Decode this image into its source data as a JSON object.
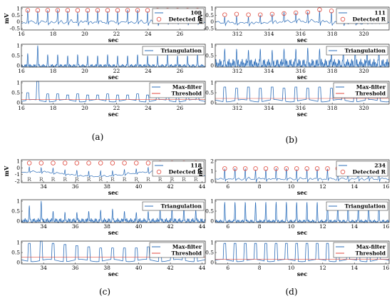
{
  "figure": {
    "panels": [
      {
        "caption": "(a)",
        "ecg_legend": "109",
        "detected_legend": "Detected R",
        "tri_legend": "Triangulation",
        "max_legend": "Max-filter",
        "thr_legend": "Threshold",
        "ecg_ylabel": "mV",
        "xlabel": "sec",
        "ecg_yticks": [
          "1",
          "0.5",
          "0",
          "-0.5"
        ],
        "tri_yticks": [
          "1",
          "0.5",
          "0"
        ],
        "max_yticks": [
          "1",
          "0.5",
          "0"
        ],
        "xticks": [
          "16",
          "18",
          "20",
          "22",
          "24",
          "26"
        ],
        "r_marker_label": ""
      },
      {
        "caption": "(b)",
        "ecg_legend": "111",
        "detected_legend": "Detected R",
        "tri_legend": "Triangulation",
        "max_legend": "Max-filter",
        "thr_legend": "Threshold",
        "ecg_ylabel": "mV",
        "xlabel": "sec",
        "ecg_yticks": [
          "1",
          "0.5",
          "0",
          "-0.5"
        ],
        "tri_yticks": [
          "1",
          "0.5",
          "0"
        ],
        "max_yticks": [
          "1",
          "0.5",
          "0"
        ],
        "xticks": [
          "312",
          "314",
          "316",
          "318",
          "320"
        ],
        "r_marker_label": ""
      },
      {
        "caption": "(c)",
        "ecg_legend": "118",
        "detected_legend": "Detected R",
        "tri_legend": "Triangulation",
        "max_legend": "Max-filter",
        "thr_legend": "Threshold",
        "ecg_ylabel": "mV",
        "xlabel": "sec",
        "ecg_yticks": [
          "1",
          "0",
          "-1",
          "-2"
        ],
        "tri_yticks": [
          "1",
          "0.5",
          "0"
        ],
        "max_yticks": [
          "1",
          "0.5",
          "0"
        ],
        "xticks": [
          "34",
          "36",
          "38",
          "40",
          "42",
          "44"
        ],
        "r_marker_label": "R"
      },
      {
        "caption": "(d)",
        "ecg_legend": "234",
        "detected_legend": "Detected R",
        "tri_legend": "Triangulation",
        "max_legend": "Max-filter",
        "thr_legend": "Threshold",
        "ecg_ylabel": "mV",
        "xlabel": "sec",
        "ecg_yticks": [
          "2",
          "1",
          "0"
        ],
        "tri_yticks": [
          "1",
          "0.5",
          "0"
        ],
        "max_yticks": [
          "1",
          "0.5",
          "0"
        ],
        "xticks": [
          "6",
          "8",
          "10",
          "12",
          "14",
          "16"
        ],
        "r_marker_label": ""
      }
    ]
  },
  "chart_data": [
    {
      "panel": "(a)",
      "type": "line",
      "record": "109",
      "signals": [
        "ECG",
        "Triangulation",
        "Max-filter",
        "Threshold"
      ],
      "x_range": [
        16,
        27.6
      ],
      "ecg_ylim": [
        -0.6,
        1.2
      ],
      "tri_ylim": [
        0,
        1
      ],
      "max_ylim": [
        0,
        1
      ],
      "r_peak_times": [
        16.4,
        17.03,
        17.66,
        18.29,
        18.92,
        19.55,
        20.18,
        20.81,
        21.44,
        22.07,
        22.7,
        23.33,
        23.96,
        24.59,
        25.22,
        25.85,
        26.48,
        27.11
      ],
      "r_peak_amplitudes": [
        0.95,
        0.95,
        0.95,
        0.95,
        0.95,
        0.95,
        0.95,
        0.95,
        0.95,
        0.95,
        0.95,
        0.95,
        0.95,
        0.95,
        0.95,
        0.95,
        0.95,
        0.95
      ],
      "tri_peak_values": [
        0.6,
        0.95,
        0.55,
        0.55,
        0.5,
        0.55,
        0.5,
        0.5,
        0.55,
        0.5,
        0.5,
        0.55,
        0.5,
        0.5,
        0.55,
        0.5,
        0.5,
        0.55
      ],
      "max_filter_peaks": [
        0.5,
        1.0,
        0.45,
        0.45,
        0.4,
        0.45,
        0.4,
        0.4,
        0.45,
        0.4,
        0.4,
        0.45,
        0.4,
        0.4,
        0.45,
        0.4,
        0.4,
        0.45
      ],
      "threshold": 0.2
    },
    {
      "panel": "(b)",
      "type": "line",
      "record": "111",
      "signals": [
        "ECG",
        "Triangulation",
        "Max-filter",
        "Threshold"
      ],
      "x_range": [
        310.6,
        321.6
      ],
      "ecg_ylim": [
        -0.6,
        1.2
      ],
      "tri_ylim": [
        0,
        1
      ],
      "max_ylim": [
        0,
        1
      ],
      "r_peak_times": [
        311.2,
        311.95,
        312.7,
        313.45,
        314.2,
        314.95,
        315.7,
        316.45,
        317.2,
        317.95,
        318.7,
        319.45,
        320.2,
        320.95
      ],
      "r_peak_amplitudes": [
        0.6,
        0.65,
        0.6,
        0.6,
        0.65,
        0.7,
        0.75,
        0.8,
        1.0,
        0.9,
        0.8,
        0.75,
        0.7,
        0.7
      ],
      "tri_peak_values": [
        0.8,
        0.8,
        0.75,
        0.8,
        0.75,
        0.8,
        0.8,
        0.85,
        0.8,
        0.75,
        0.8,
        0.8,
        0.75,
        0.8
      ],
      "max_filter_peaks": [
        0.75,
        0.7,
        0.75,
        0.7,
        0.75,
        0.7,
        0.75,
        0.7,
        0.75,
        0.7,
        0.75,
        0.7,
        0.75,
        0.7
      ],
      "threshold": 0.25
    },
    {
      "panel": "(c)",
      "type": "line",
      "record": "118",
      "signals": [
        "ECG",
        "Triangulation",
        "Max-filter",
        "Threshold"
      ],
      "x_range": [
        32.6,
        44.2
      ],
      "ecg_ylim": [
        -2.2,
        1.3
      ],
      "tri_ylim": [
        0,
        1
      ],
      "max_ylim": [
        0,
        1
      ],
      "r_peak_times": [
        33.1,
        33.85,
        34.6,
        35.35,
        36.1,
        36.85,
        37.6,
        38.35,
        39.1,
        39.85,
        40.6,
        41.35,
        42.1,
        42.85,
        43.6
      ],
      "r_peak_amplitudes": [
        0.8,
        0.8,
        0.8,
        0.8,
        0.8,
        0.8,
        0.8,
        0.8,
        0.8,
        0.8,
        0.8,
        0.8,
        0.8,
        0.8,
        0.8
      ],
      "tri_peak_values": [
        0.75,
        0.95,
        0.5,
        0.45,
        0.45,
        0.5,
        0.55,
        0.6,
        0.5,
        0.45,
        0.5,
        0.55,
        0.6,
        0.75,
        0.55
      ],
      "max_filter_peaks": [
        0.9,
        1.0,
        0.9,
        0.85,
        0.8,
        0.75,
        0.7,
        0.7,
        0.7,
        0.7,
        0.75,
        0.7,
        0.7,
        0.75,
        0.7
      ],
      "threshold": 0.3
    },
    {
      "panel": "(d)",
      "type": "line",
      "record": "234",
      "signals": [
        "ECG",
        "Triangulation",
        "Max-filter",
        "Threshold"
      ],
      "x_range": [
        5.2,
        16.2
      ],
      "ecg_ylim": [
        -0.4,
        2.2
      ],
      "tri_ylim": [
        0,
        1
      ],
      "max_ylim": [
        0,
        1
      ],
      "r_peak_times": [
        5.8,
        6.45,
        7.1,
        7.75,
        8.4,
        9.05,
        9.7,
        10.35,
        11.0,
        11.65,
        12.3,
        12.95,
        13.6,
        14.25,
        14.9,
        15.55
      ],
      "r_peak_amplitudes": [
        1.2,
        1.2,
        1.2,
        1.2,
        1.2,
        1.2,
        1.2,
        1.2,
        1.2,
        1.2,
        1.2,
        1.2,
        1.2,
        1.2,
        1.2,
        1.2
      ],
      "tri_peak_values": [
        0.9,
        0.9,
        0.9,
        0.9,
        0.9,
        0.9,
        0.9,
        0.9,
        0.9,
        0.9,
        0.9,
        0.9,
        0.9,
        0.9,
        0.9,
        0.9
      ],
      "max_filter_peaks": [
        0.9,
        0.9,
        0.9,
        0.9,
        0.9,
        0.9,
        0.9,
        0.9,
        0.9,
        0.9,
        0.9,
        0.9,
        0.9,
        0.9,
        0.9,
        0.9
      ],
      "threshold": 0.2
    }
  ]
}
